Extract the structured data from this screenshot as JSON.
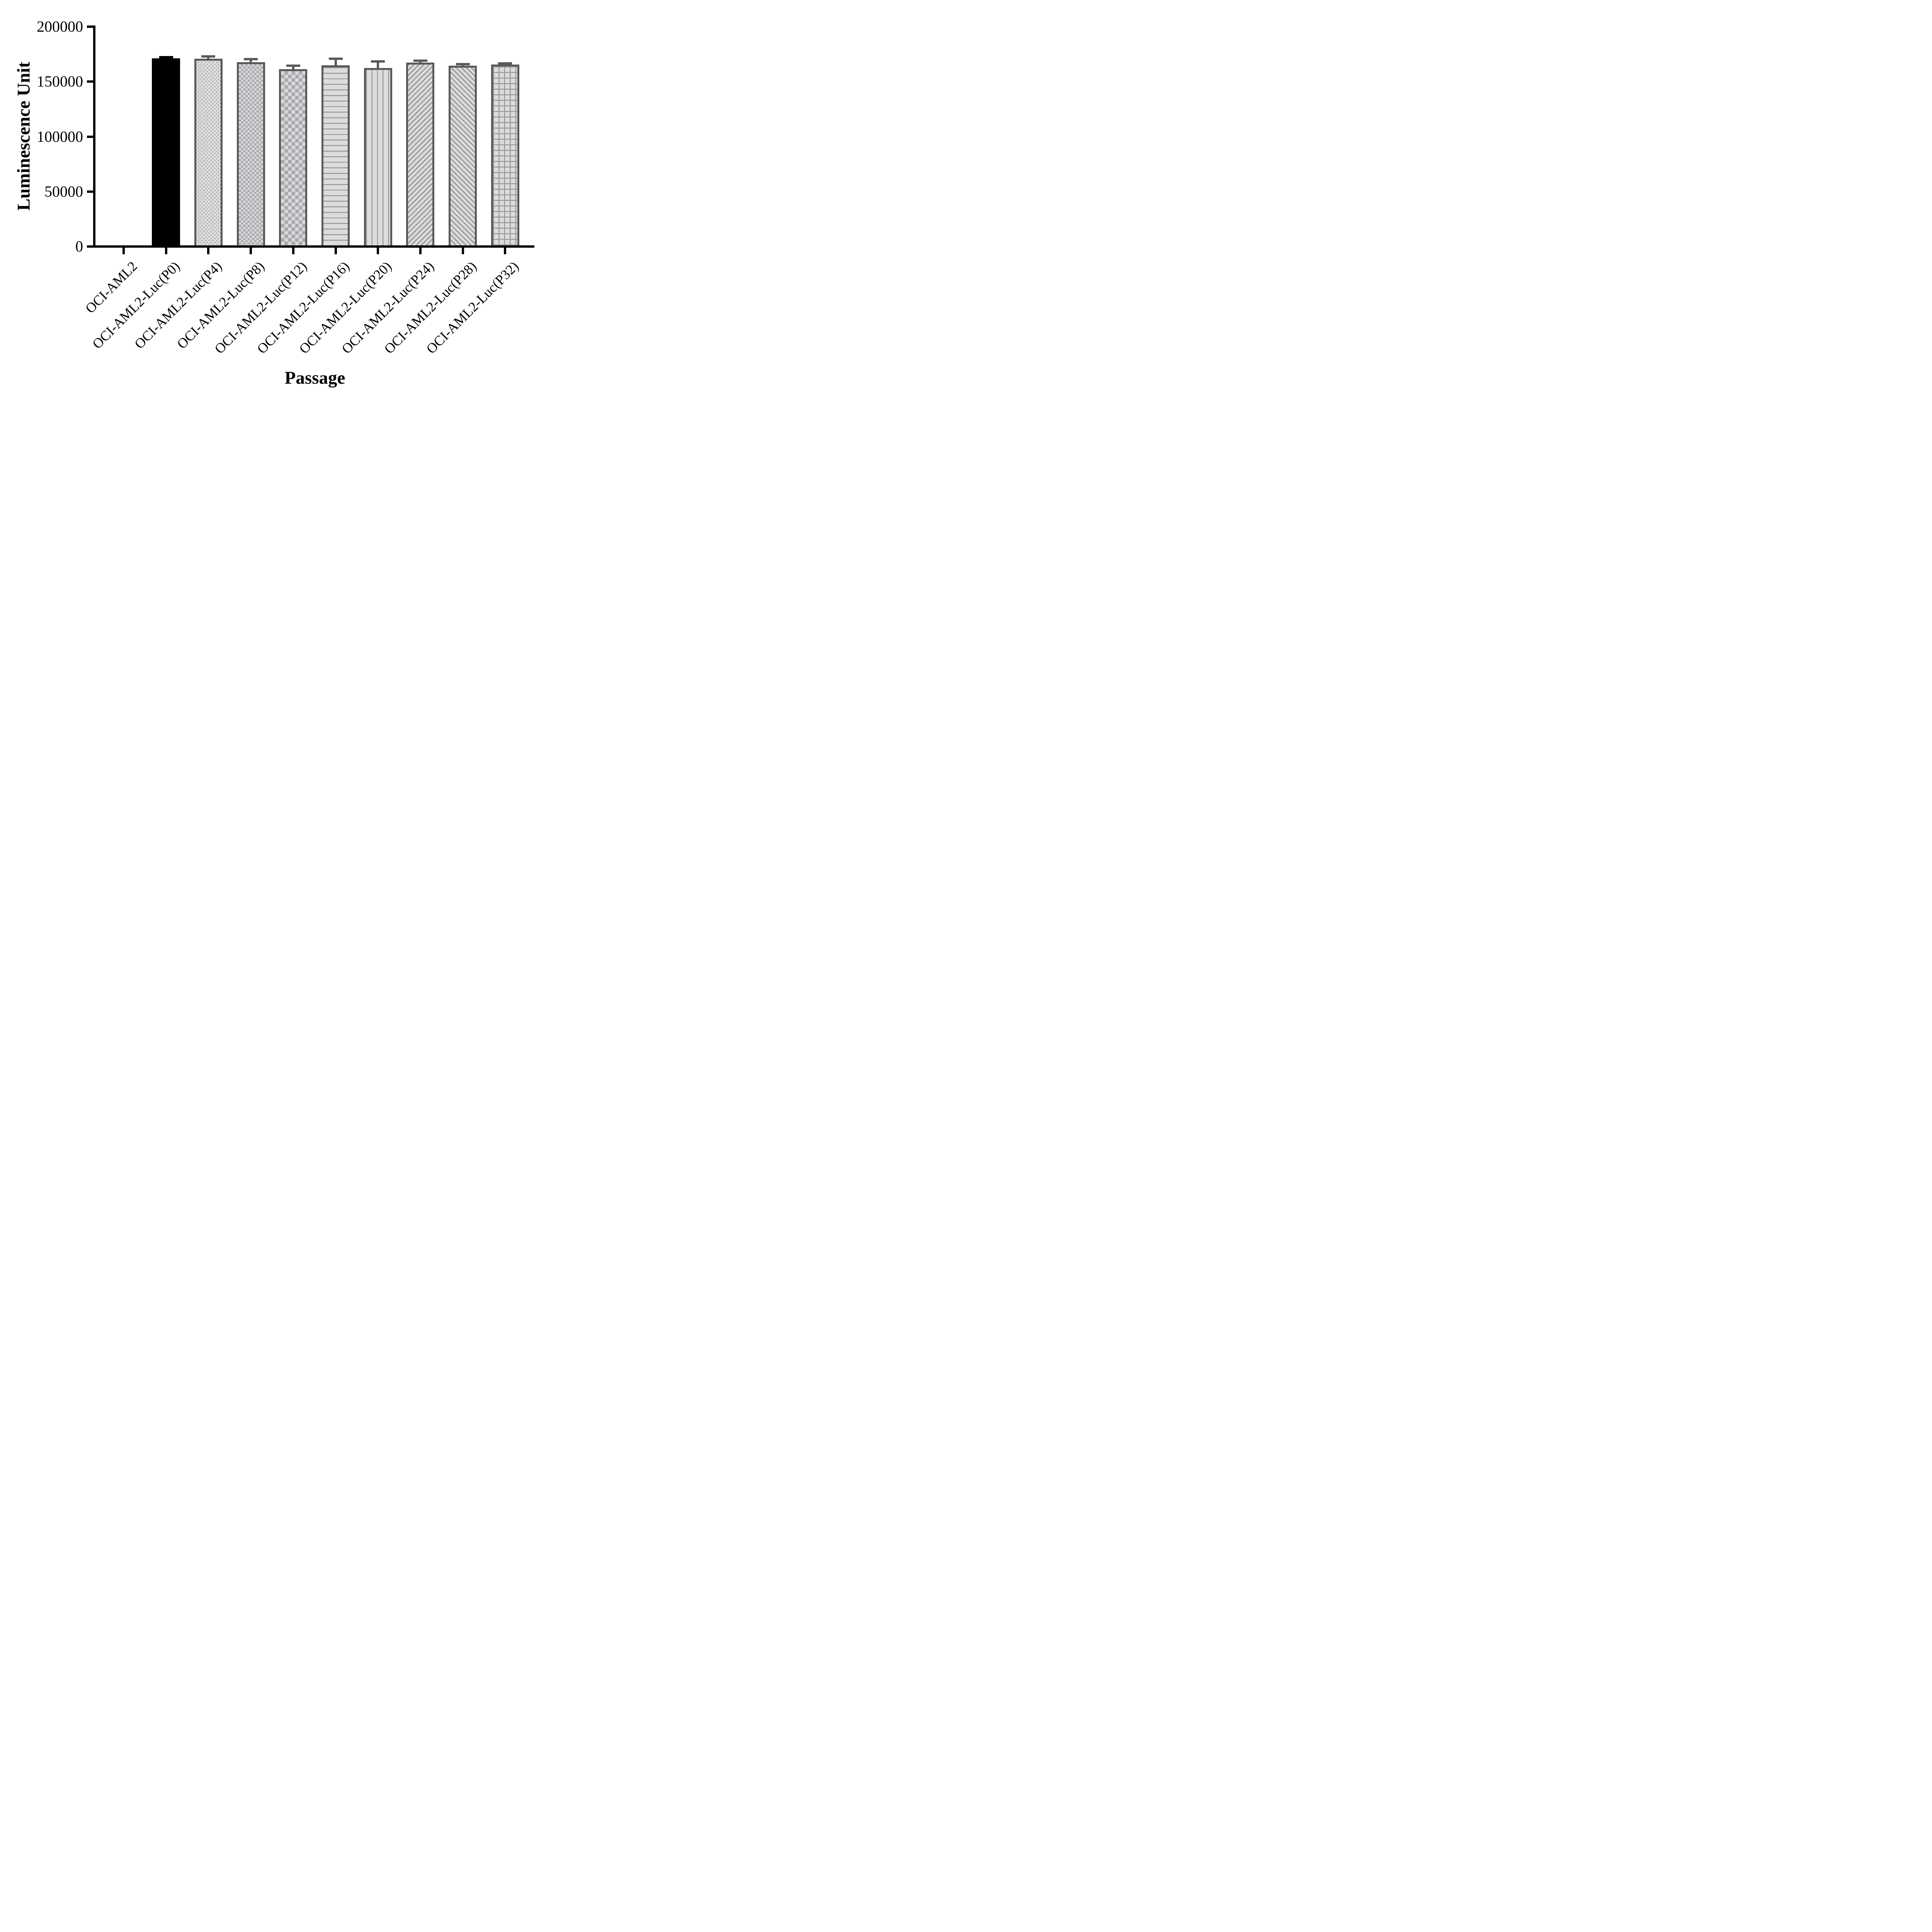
{
  "chart_data": {
    "type": "bar",
    "title": "",
    "xlabel": "Passage",
    "ylabel": "Luminescence Unit",
    "ylim": [
      0,
      200000
    ],
    "grid": false,
    "legend": "none",
    "yticks": [
      {
        "value": 0,
        "label": "0"
      },
      {
        "value": 50000,
        "label": "50000"
      },
      {
        "value": 100000,
        "label": "100000"
      },
      {
        "value": 150000,
        "label": "150000"
      },
      {
        "value": 200000,
        "label": "200000"
      }
    ],
    "categories": [
      "OCI-AML2",
      "OCI-AML2-Luc(P0)",
      "OCI-AML2-Luc(P4)",
      "OCI-AML2-Luc(P8)",
      "OCI-AML2-Luc(P12)",
      "OCI-AML2-Luc(P16)",
      "OCI-AML2-Luc(P20)",
      "OCI-AML2-Luc(P24)",
      "OCI-AML2-Luc(P28)",
      "OCI-AML2-Luc(P32)"
    ],
    "series": [
      {
        "name": "Luminescence Unit",
        "values": [
          0,
          171300,
          170800,
          167800,
          161500,
          165000,
          162400,
          167400,
          164700,
          165500
        ],
        "errors_sd": [
          0,
          1000,
          2100,
          2900,
          3200,
          5800,
          6200,
          1800,
          1100,
          1000
        ],
        "patterns": [
          "none",
          "solid-black",
          "dots",
          "checker-fine",
          "checker-coarse",
          "lines-horizontal",
          "lines-vertical",
          "diagonal-up",
          "diagonal-down",
          "grid"
        ]
      }
    ],
    "error_bar_style": "sd-up-with-cap",
    "colors": {
      "axis": "#000000",
      "bar_frame": "#59595c",
      "pattern_foreground": "#97979c",
      "bar_fill": "#dcdcdd",
      "first_bar": "#000000"
    }
  }
}
